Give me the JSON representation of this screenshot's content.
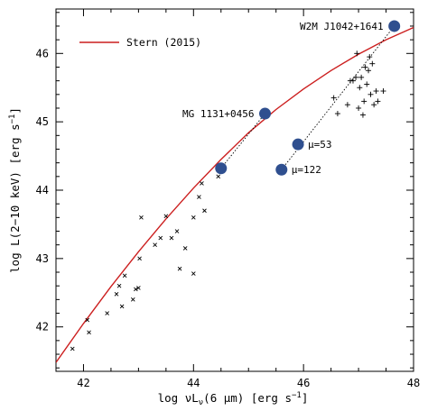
{
  "chart_data": {
    "type": "scatter",
    "xlabel": "log νL",
    "xlabel_sub": "ν",
    "xlabel_rest": "(6 μm) [erg s",
    "xlabel_sup": "−1",
    "xlabel_end": "]",
    "ylabel": "log L(2−10 keV) [erg s",
    "ylabel_sup": "−1",
    "ylabel_end": "]",
    "xlim": [
      41.5,
      48
    ],
    "ylim": [
      41.35,
      46.65
    ],
    "xticks": [
      42,
      44,
      46,
      48
    ],
    "yticks": [
      42,
      43,
      44,
      45,
      46
    ],
    "legend": {
      "position": "top-left",
      "entries": [
        {
          "label": "Stern (2015)",
          "color": "#cc1f1f"
        }
      ]
    },
    "relation": {
      "name": "Stern (2015)",
      "color": "#cc1f1f",
      "x": [
        41.5,
        42,
        42.5,
        43,
        43.5,
        44,
        44.5,
        45,
        45.5,
        46,
        46.5,
        47,
        47.5,
        48
      ],
      "y": [
        41.48,
        42.05,
        42.59,
        43.1,
        43.58,
        44.03,
        44.45,
        44.84,
        45.18,
        45.48,
        45.75,
        45.99,
        46.2,
        46.38
      ]
    },
    "x_markers": [
      [
        41.8,
        41.68
      ],
      [
        42.1,
        41.92
      ],
      [
        42.07,
        42.1
      ],
      [
        42.43,
        42.2
      ],
      [
        42.6,
        42.48
      ],
      [
        42.65,
        42.6
      ],
      [
        42.7,
        42.3
      ],
      [
        42.75,
        42.75
      ],
      [
        42.9,
        42.4
      ],
      [
        42.95,
        42.55
      ],
      [
        43.0,
        42.57
      ],
      [
        43.02,
        43.0
      ],
      [
        43.05,
        43.6
      ],
      [
        43.3,
        43.2
      ],
      [
        43.4,
        43.3
      ],
      [
        43.5,
        43.62
      ],
      [
        43.6,
        43.3
      ],
      [
        43.7,
        43.4
      ],
      [
        43.75,
        42.85
      ],
      [
        43.85,
        43.15
      ],
      [
        44.0,
        42.78
      ],
      [
        44.0,
        43.6
      ],
      [
        44.1,
        43.9
      ],
      [
        44.15,
        44.1
      ],
      [
        44.2,
        43.7
      ],
      [
        44.45,
        44.2
      ]
    ],
    "plus_markers": [
      [
        46.55,
        45.35
      ],
      [
        46.62,
        45.12
      ],
      [
        46.8,
        45.25
      ],
      [
        46.85,
        45.6
      ],
      [
        46.9,
        45.6
      ],
      [
        46.95,
        45.65
      ],
      [
        46.97,
        46.0
      ],
      [
        47.0,
        45.2
      ],
      [
        47.02,
        45.5
      ],
      [
        47.05,
        45.65
      ],
      [
        47.08,
        45.1
      ],
      [
        47.1,
        45.3
      ],
      [
        47.12,
        45.8
      ],
      [
        47.15,
        45.55
      ],
      [
        47.18,
        45.75
      ],
      [
        47.2,
        45.95
      ],
      [
        47.22,
        45.4
      ],
      [
        47.25,
        45.85
      ],
      [
        47.28,
        45.25
      ],
      [
        47.32,
        45.45
      ],
      [
        47.35,
        45.3
      ],
      [
        47.45,
        45.45
      ]
    ],
    "lensed_pairs": [
      {
        "from": [
          44.5,
          44.32
        ],
        "to": [
          45.3,
          45.12
        ],
        "label": "MG 1131+0456",
        "label_at": "to"
      },
      {
        "from": [
          45.6,
          44.3
        ],
        "to": [
          47.65,
          46.4
        ],
        "label": "W2M J1042+1641",
        "label_at": "to"
      },
      {
        "point": [
          45.9,
          44.67
        ],
        "label": "μ=53"
      },
      {
        "point": [
          45.6,
          44.3
        ],
        "label": "μ=122"
      }
    ],
    "big_point_color": "#2f4f8f"
  }
}
